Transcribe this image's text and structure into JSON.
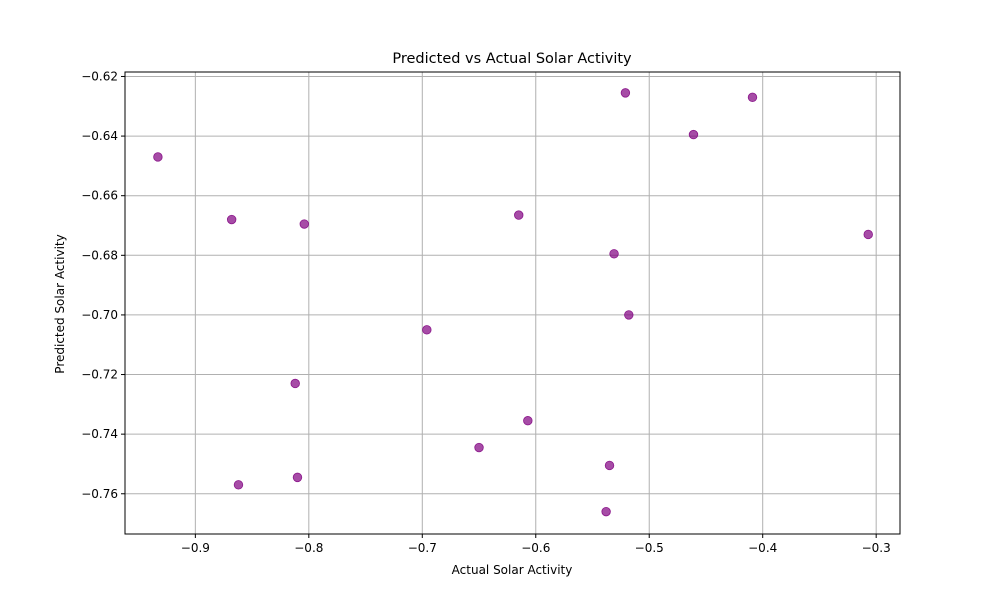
{
  "chart_data": {
    "type": "scatter",
    "title": "Predicted vs Actual Solar Activity",
    "xlabel": "Actual Solar Activity",
    "ylabel": "Predicted Solar Activity",
    "xlim": [
      -0.962,
      -0.279
    ],
    "ylim": [
      -0.7735,
      -0.6185
    ],
    "xticks": [
      -0.9,
      -0.8,
      -0.7,
      -0.6,
      -0.5,
      -0.4,
      -0.3
    ],
    "xtick_labels": [
      "−0.9",
      "−0.8",
      "−0.7",
      "−0.6",
      "−0.5",
      "−0.4",
      "−0.3"
    ],
    "yticks": [
      -0.76,
      -0.74,
      -0.72,
      -0.7,
      -0.68,
      -0.66,
      -0.64,
      -0.62
    ],
    "ytick_labels": [
      "−0.76",
      "−0.74",
      "−0.72",
      "−0.70",
      "−0.68",
      "−0.66",
      "−0.64",
      "−0.62"
    ],
    "grid": true,
    "marker_color": "#800080",
    "marker_alpha": 0.7,
    "points": [
      {
        "x": -0.933,
        "y": -0.647
      },
      {
        "x": -0.868,
        "y": -0.668
      },
      {
        "x": -0.862,
        "y": -0.757
      },
      {
        "x": -0.812,
        "y": -0.723
      },
      {
        "x": -0.81,
        "y": -0.7545
      },
      {
        "x": -0.804,
        "y": -0.6695
      },
      {
        "x": -0.696,
        "y": -0.705
      },
      {
        "x": -0.65,
        "y": -0.7445
      },
      {
        "x": -0.615,
        "y": -0.6665
      },
      {
        "x": -0.607,
        "y": -0.7355
      },
      {
        "x": -0.538,
        "y": -0.766
      },
      {
        "x": -0.535,
        "y": -0.7505
      },
      {
        "x": -0.531,
        "y": -0.6795
      },
      {
        "x": -0.521,
        "y": -0.6255
      },
      {
        "x": -0.518,
        "y": -0.7
      },
      {
        "x": -0.461,
        "y": -0.6395
      },
      {
        "x": -0.409,
        "y": -0.627
      },
      {
        "x": -0.307,
        "y": -0.673
      }
    ]
  }
}
